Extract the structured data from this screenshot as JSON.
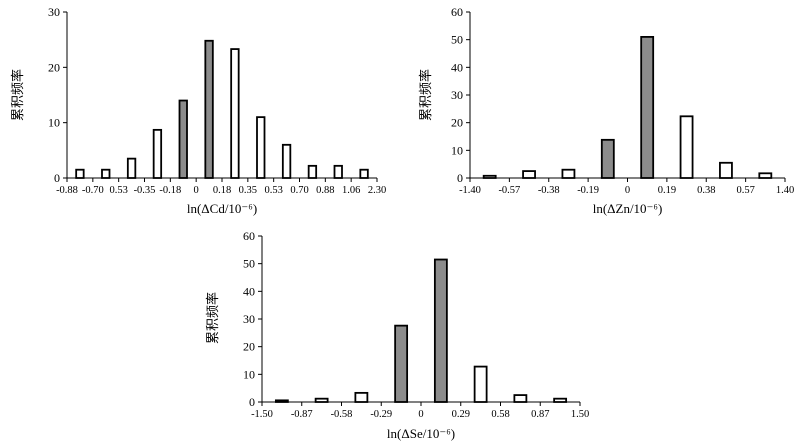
{
  "colors": {
    "filled_bar": "#8c8c8c",
    "open_bar": "#ffffff",
    "bar_stroke": "#000000",
    "axis": "#000000"
  },
  "chart_data": [
    {
      "type": "bar",
      "title": "",
      "xlabel": "ln(ΔCd/10⁻⁶)",
      "ylabel": "累积频率",
      "ylim": [
        0,
        30
      ],
      "yticks": [
        0,
        10,
        20,
        30
      ],
      "grid": false,
      "legend": "none",
      "xtick_labels": [
        "-0.88",
        "-0.70",
        "0.53",
        "-0.35",
        "-0.18",
        "0",
        "0.18",
        "0.35",
        "0.53",
        "0.70",
        "0.88",
        "1.06",
        "2.30"
      ],
      "bars": [
        {
          "value": 1.5,
          "filled": false
        },
        {
          "value": 1.5,
          "filled": false
        },
        {
          "value": 3.5,
          "filled": false
        },
        {
          "value": 8.7,
          "filled": false
        },
        {
          "value": 14.0,
          "filled": true
        },
        {
          "value": 24.8,
          "filled": true
        },
        {
          "value": 23.3,
          "filled": false
        },
        {
          "value": 11.0,
          "filled": false
        },
        {
          "value": 6.0,
          "filled": false
        },
        {
          "value": 2.2,
          "filled": false
        },
        {
          "value": 2.2,
          "filled": false
        },
        {
          "value": 1.5,
          "filled": false
        }
      ]
    },
    {
      "type": "bar",
      "title": "",
      "xlabel": "ln(ΔZn/10⁻⁶)",
      "ylabel": "累积频率",
      "ylim": [
        0,
        60
      ],
      "yticks": [
        0,
        10,
        20,
        30,
        40,
        50,
        60
      ],
      "grid": false,
      "legend": "none",
      "xtick_labels": [
        "-1.40",
        "-0.57",
        "-0.38",
        "-0.19",
        "0",
        "0.19",
        "0.38",
        "0.57",
        "1.40"
      ],
      "bars": [
        {
          "value": 0.8,
          "filled": false
        },
        {
          "value": 2.5,
          "filled": false
        },
        {
          "value": 3.0,
          "filled": false
        },
        {
          "value": 13.8,
          "filled": true
        },
        {
          "value": 51.0,
          "filled": true
        },
        {
          "value": 22.3,
          "filled": false
        },
        {
          "value": 5.5,
          "filled": false
        },
        {
          "value": 1.7,
          "filled": false
        }
      ]
    },
    {
      "type": "bar",
      "title": "",
      "xlabel": "ln(ΔSe/10⁻⁶)",
      "ylabel": "累积频率",
      "ylim": [
        0,
        60
      ],
      "yticks": [
        0,
        10,
        20,
        30,
        40,
        50,
        60
      ],
      "grid": false,
      "legend": "none",
      "xtick_labels": [
        "-1.50",
        "-0.87",
        "-0.58",
        "-0.29",
        "0",
        "0.29",
        "0.58",
        "0.87",
        "1.50"
      ],
      "bars": [
        {
          "value": 0.6,
          "filled": false
        },
        {
          "value": 1.2,
          "filled": false
        },
        {
          "value": 3.3,
          "filled": false
        },
        {
          "value": 27.6,
          "filled": true
        },
        {
          "value": 51.5,
          "filled": true
        },
        {
          "value": 12.8,
          "filled": false
        },
        {
          "value": 2.5,
          "filled": false
        },
        {
          "value": 1.2,
          "filled": false
        }
      ]
    }
  ]
}
